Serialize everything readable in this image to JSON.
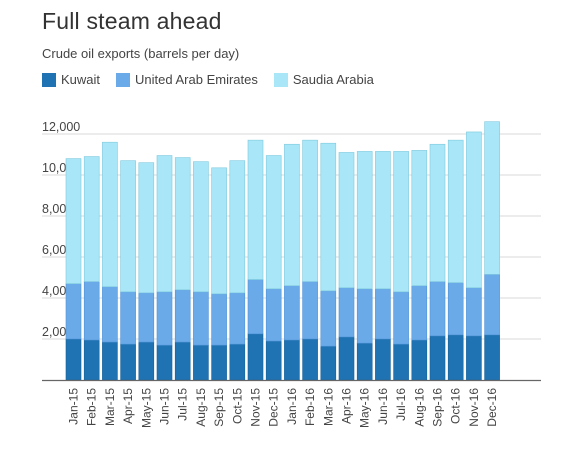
{
  "title": "Full steam ahead",
  "subtitle": "Crude oil exports (barrels per day)",
  "colors": {
    "kuwait": "#1f73b2",
    "uae": "#6aaae9",
    "saudi": "#a9e6f7",
    "grid": "#d9d9d9",
    "axis": "#666666"
  },
  "chart_data": {
    "type": "bar",
    "stacked": true,
    "categories": [
      "Jan-15",
      "Feb-15",
      "Mar-15",
      "Apr-15",
      "May-15",
      "Jun-15",
      "Jul-15",
      "Aug-15",
      "Sep-15",
      "Oct-15",
      "Nov-15",
      "Dec-15",
      "Jan-16",
      "Feb-16",
      "Mar-16",
      "Apr-16",
      "May-16",
      "Jun-16",
      "Jul-16",
      "Aug-16",
      "Sep-16",
      "Oct-16",
      "Nov-16",
      "Dec-16"
    ],
    "series": [
      {
        "name": "Kuwait",
        "values": [
          2000,
          1950,
          1850,
          1750,
          1850,
          1700,
          1850,
          1700,
          1700,
          1750,
          2250,
          1900,
          1950,
          2000,
          1650,
          2100,
          1800,
          2000,
          1750,
          1950,
          2150,
          2200,
          2150,
          2200
        ]
      },
      {
        "name": "United Arab Emirates",
        "values": [
          2700,
          2850,
          2700,
          2550,
          2400,
          2600,
          2550,
          2600,
          2500,
          2500,
          2650,
          2550,
          2650,
          2800,
          2700,
          2400,
          2650,
          2450,
          2550,
          2650,
          2650,
          2550,
          2350,
          2950
        ]
      },
      {
        "name": "Saudia Arabia",
        "values": [
          6100,
          6100,
          7050,
          6400,
          6350,
          6650,
          6450,
          6350,
          6150,
          6450,
          6800,
          6500,
          6900,
          6900,
          7200,
          6600,
          6700,
          6700,
          6850,
          6600,
          6700,
          6950,
          7600,
          7450
        ]
      }
    ],
    "yticks": [
      "2,000",
      "4,000",
      "6,000",
      "8,000",
      "10,000",
      "12,000"
    ],
    "ylim": [
      0,
      12500
    ],
    "grid": true,
    "legend_position": "top-left"
  }
}
